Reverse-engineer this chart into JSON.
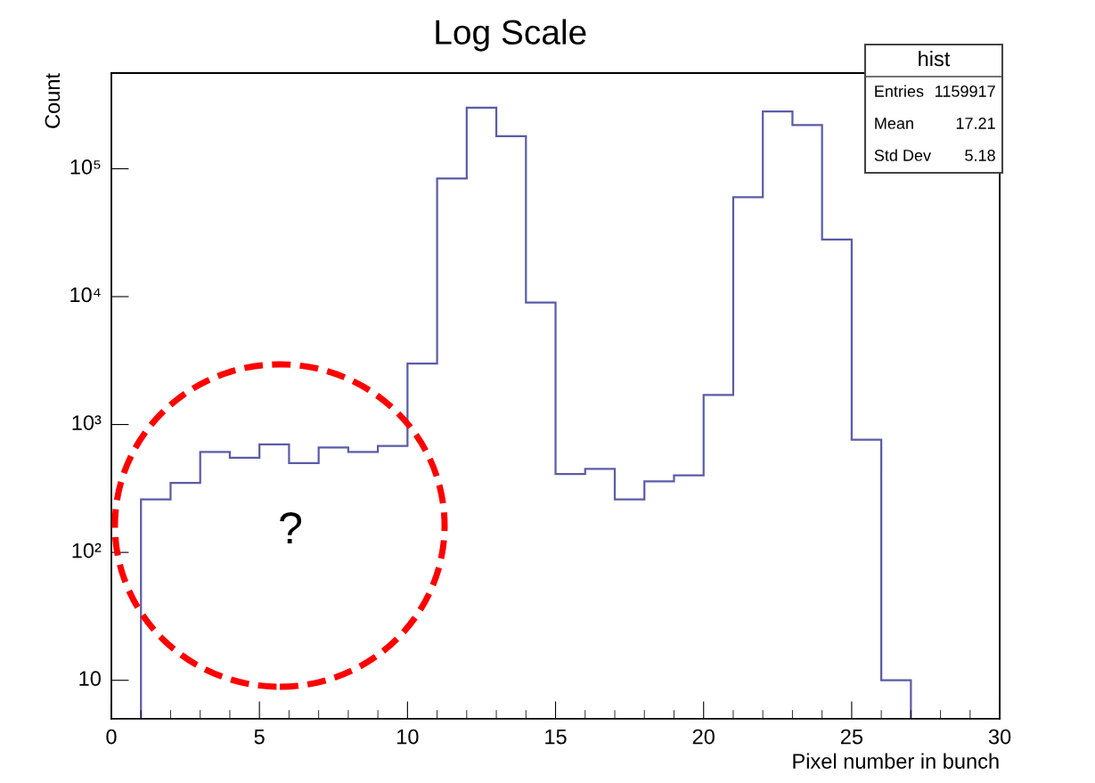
{
  "chart_data": {
    "type": "histogram",
    "title": "Log Scale",
    "xlabel": "Pixel number in bunch",
    "ylabel": "Count",
    "bins": [
      1,
      2,
      3,
      4,
      5,
      6,
      7,
      8,
      9,
      10,
      11,
      12,
      13,
      14,
      15,
      16,
      17,
      18,
      19,
      20,
      21,
      22,
      23,
      24,
      25,
      26,
      27
    ],
    "values": [
      260,
      350,
      610,
      550,
      700,
      500,
      660,
      610,
      680,
      3000,
      84000,
      300000,
      180000,
      9000,
      410,
      450,
      260,
      360,
      400,
      1700,
      60000,
      280000,
      220000,
      28000,
      760,
      10
    ],
    "color": "#5b5ba8",
    "log": "y",
    "grid": false,
    "legend": false,
    "xlim": [
      0,
      30
    ],
    "xticks": [
      0,
      5,
      10,
      15,
      20,
      25,
      30
    ],
    "ylim": [
      5,
      560000
    ],
    "yticks": [
      10,
      {
        "value": 100,
        "label": "10²"
      },
      {
        "value": 1000,
        "label": "10³"
      },
      {
        "value": 10000,
        "label": "10⁴"
      },
      {
        "value": 100000,
        "label": "10⁵"
      }
    ],
    "annotations": [
      "hist",
      "Entries 1159917",
      "Mean 17.21",
      "Std Dev 5.18",
      "?"
    ]
  }
}
